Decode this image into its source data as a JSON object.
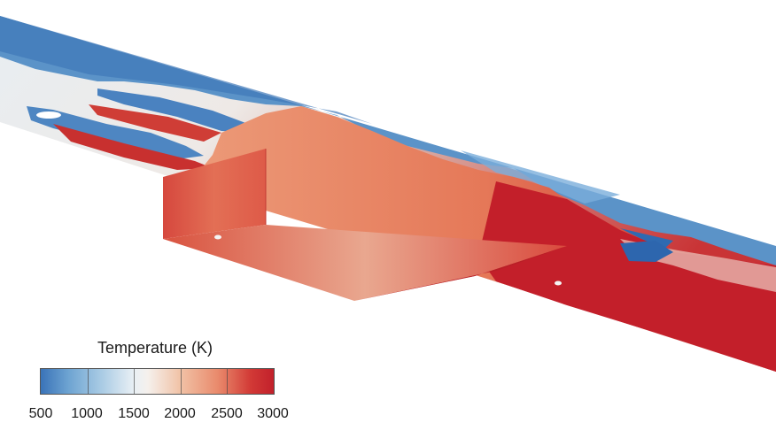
{
  "figure": {
    "colorbar": {
      "title": "Temperature (K)",
      "ticks": [
        "500",
        "1000",
        "1500",
        "2000",
        "2500",
        "3000"
      ],
      "range": [
        500,
        3000
      ],
      "colormap": [
        "#3a73b8",
        "#6ea4d2",
        "#a9cbe4",
        "#e9f0f5",
        "#f1c2a6",
        "#e98a6c",
        "#d23a36",
        "#c2202b"
      ]
    }
  }
}
